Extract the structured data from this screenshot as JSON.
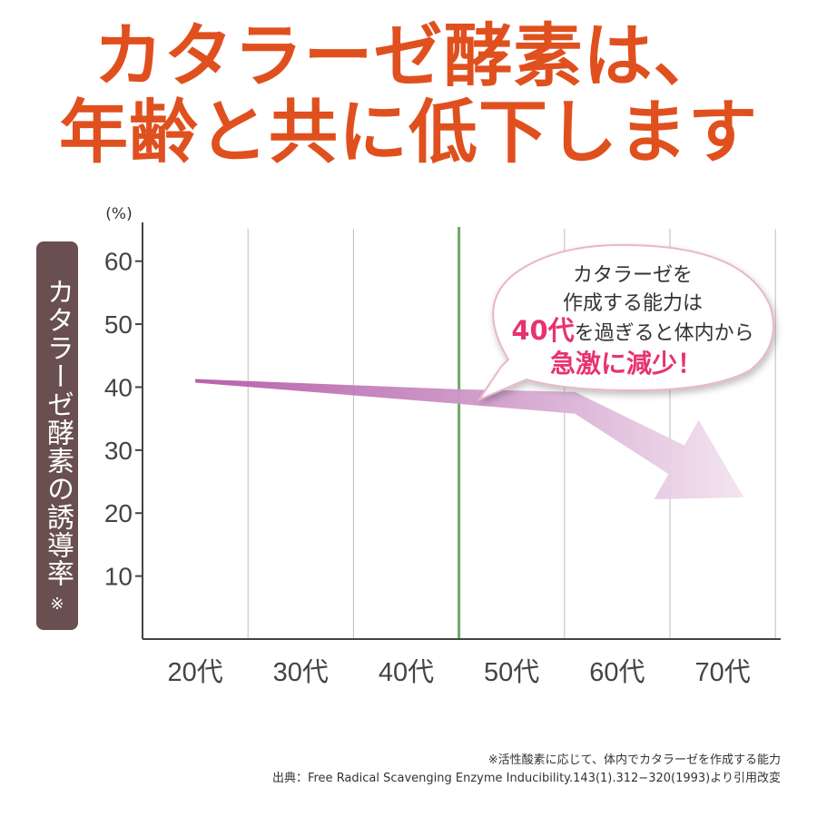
{
  "headline": {
    "line1": "カタラーゼ酵素は、",
    "line2": "年齢と共に低下します"
  },
  "y_axis_box": {
    "label": "カタラーゼ酵素の誘導率",
    "mark": "※"
  },
  "callout": {
    "line1": "カタラーゼを",
    "line2": "作成する能力は",
    "line3_highlight": "40代",
    "line3_rest": "を過ぎると体内から",
    "line4": "急激に減少！"
  },
  "colors": {
    "headline": "#e0501e",
    "highlight": "#e8336f",
    "marker_line": "#6fa86a",
    "trend": "#c98fc3",
    "label_box": "#6a4f50"
  },
  "footnotes": {
    "note": "※活性酸素に応じて、体内でカタラーゼを作成する能力",
    "source": "出典：Free Radical Scavenging Enzyme Inducibility.143(1).312−320(1993)より引用改変"
  },
  "chart_data": {
    "type": "line",
    "categories": [
      "20代",
      "30代",
      "40代",
      "50代",
      "60代",
      "70代"
    ],
    "ylabel_unit": "(%)",
    "ylim": [
      0,
      65
    ],
    "yticks": [
      10,
      20,
      30,
      40,
      50,
      60
    ],
    "series": [
      {
        "x": [
          20,
          45,
          56,
          72
        ],
        "values": [
          41,
          38.5,
          37.5,
          22.5
        ]
      }
    ],
    "marker_at": 45,
    "grid": "vertical"
  }
}
